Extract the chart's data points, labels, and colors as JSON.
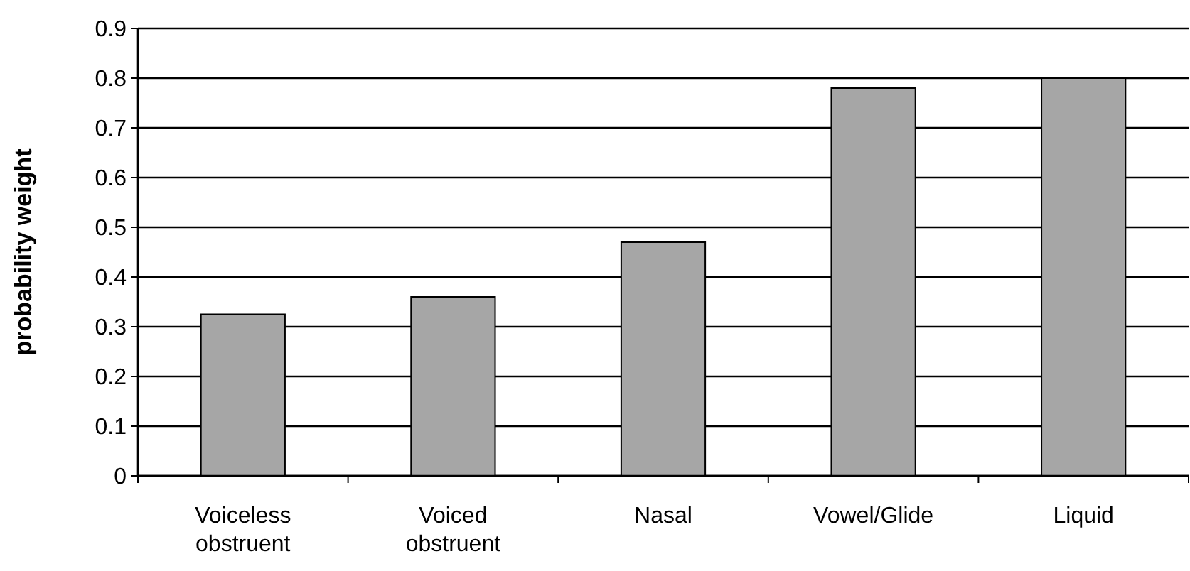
{
  "chart_data": {
    "type": "bar",
    "ylabel": "probability weight",
    "categories": [
      "Voiceless obstruent",
      "Voiced obstruent",
      "Nasal",
      "Vowel/Glide",
      "Liquid"
    ],
    "values": [
      0.325,
      0.36,
      0.47,
      0.78,
      0.8
    ],
    "color": "#a6a6a6",
    "ylim": [
      0,
      0.9
    ],
    "yticks": [
      0,
      0.1,
      0.2,
      0.3,
      0.4,
      0.5,
      0.6,
      0.7,
      0.8,
      0.9
    ],
    "grid": "y"
  }
}
